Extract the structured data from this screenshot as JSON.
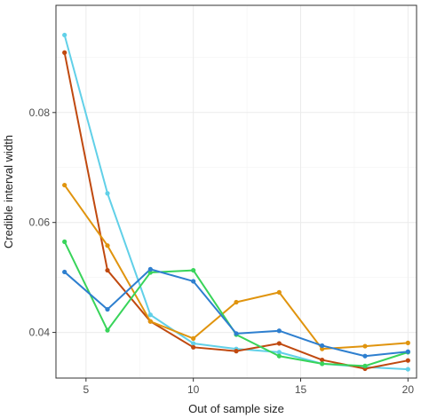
{
  "chart_data": {
    "type": "line",
    "title": "",
    "xlabel": "Out of sample size",
    "ylabel": "Credible interval width",
    "x": [
      4,
      6,
      8,
      10,
      12,
      14,
      16,
      18,
      20
    ],
    "xlim": [
      3.6,
      20.4
    ],
    "ylim": [
      0.0317,
      0.0995
    ],
    "x_ticks": [
      5,
      10,
      15,
      20
    ],
    "y_ticks": [
      0.04,
      0.06,
      0.08
    ],
    "x_tick_labels": [
      "5",
      "10",
      "15",
      "20"
    ],
    "y_tick_labels": [
      "0.04",
      "0.06",
      "0.08"
    ],
    "grid": true,
    "legend": "none",
    "series": [
      {
        "color": "#61d0e8",
        "values": [
          0.0941,
          0.0653,
          0.0432,
          0.038,
          0.037,
          0.0364,
          0.0343,
          0.0337,
          0.0333
        ]
      },
      {
        "color": "#c0490f",
        "values": [
          0.0909,
          0.0513,
          0.042,
          0.0373,
          0.0366,
          0.038,
          0.035,
          0.0334,
          0.0349
        ]
      },
      {
        "color": "#e0940e",
        "values": [
          0.0668,
          0.0558,
          0.042,
          0.0389,
          0.0455,
          0.0473,
          0.037,
          0.0375,
          0.0381
        ]
      },
      {
        "color": "#38d45a",
        "values": [
          0.0565,
          0.0404,
          0.0509,
          0.0513,
          0.0396,
          0.0357,
          0.0343,
          0.0339,
          0.0364
        ]
      },
      {
        "color": "#2e7fcf",
        "values": [
          0.051,
          0.0442,
          0.0515,
          0.0493,
          0.0398,
          0.0403,
          0.0376,
          0.0357,
          0.0365
        ]
      }
    ]
  }
}
